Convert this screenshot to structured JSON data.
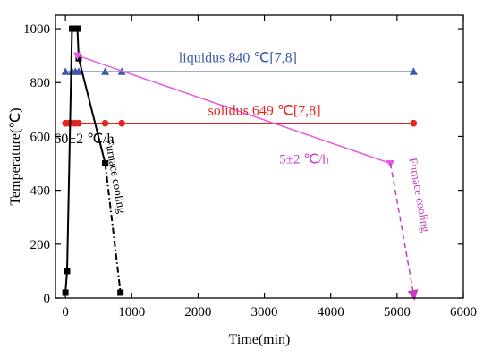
{
  "chart_data": {
    "type": "line",
    "xlabel": "Time(min)",
    "ylabel": "Temperature(℃)",
    "xlim": [
      -150,
      6000
    ],
    "ylim": [
      0,
      1050
    ],
    "xticks": [
      0,
      1000,
      2000,
      3000,
      4000,
      5000,
      6000
    ],
    "yticks": [
      0,
      200,
      400,
      600,
      800,
      1000
    ],
    "grid": false,
    "series": [
      {
        "name": "liquidus 840 ℃[7,8]",
        "color": "#3e5aa8",
        "marker": "triangle",
        "dash": "solid",
        "points": [
          [
            0,
            840
          ],
          [
            100,
            840
          ],
          [
            150,
            840
          ],
          [
            200,
            840
          ],
          [
            600,
            840
          ],
          [
            850,
            840
          ],
          [
            5250,
            840
          ]
        ]
      },
      {
        "name": "solidus 649 ℃[7,8]",
        "color": "#e8231d",
        "marker": "circle",
        "dash": "solid",
        "points": [
          [
            0,
            649
          ],
          [
            50,
            649
          ],
          [
            100,
            649
          ],
          [
            150,
            649
          ],
          [
            200,
            649
          ],
          [
            600,
            649
          ],
          [
            850,
            649
          ],
          [
            5250,
            649
          ]
        ]
      },
      {
        "name": "60±2 ℃/h",
        "color": "#000000",
        "marker": "square",
        "dash": "solid",
        "points": [
          [
            0,
            20
          ],
          [
            25,
            100
          ],
          [
            100,
            1000
          ],
          [
            140,
            1000
          ],
          [
            180,
            1000
          ],
          [
            200,
            890
          ],
          [
            600,
            500
          ]
        ]
      },
      {
        "name": "Furnace cooling",
        "color": "#000000",
        "marker": "square",
        "dash": "dashdot",
        "points": [
          [
            600,
            500
          ],
          [
            830,
            20
          ]
        ]
      },
      {
        "name": "5±2 ℃/h",
        "color": "#e75ae4",
        "marker": "triangle-down",
        "dash": "solid",
        "points": [
          [
            180,
            900
          ],
          [
            4900,
            500
          ]
        ]
      },
      {
        "name": "Furnace cooling",
        "color": "#c53fc1",
        "marker": "arrow",
        "dash": "dashed",
        "points": [
          [
            4900,
            500
          ],
          [
            5260,
            0
          ]
        ]
      }
    ],
    "annotations": [
      {
        "text": "liquidus 840 ℃[7,8]",
        "color": "#3e5aa8",
        "x": 2600,
        "y": 875,
        "rotate": 0,
        "size": 16
      },
      {
        "text": "solidus 649 ℃[7,8]",
        "color": "#e8231d",
        "x": 3000,
        "y": 680,
        "rotate": 0,
        "size": 16
      },
      {
        "text": "60±2 ℃/h",
        "color": "#000000",
        "x": 280,
        "y": 575,
        "rotate": 0,
        "size": 16
      },
      {
        "text": "5±2 ℃/h",
        "color": "#c53fc1",
        "x": 3600,
        "y": 500,
        "rotate": 0,
        "size": 15
      },
      {
        "text": "Furnace cooling",
        "color": "#000000",
        "x": 700,
        "y": 450,
        "rotate": 80,
        "size": 13
      },
      {
        "text": "Furnace cooling",
        "color": "#c53fc1",
        "x": 5280,
        "y": 380,
        "rotate": 80,
        "size": 13
      }
    ]
  }
}
